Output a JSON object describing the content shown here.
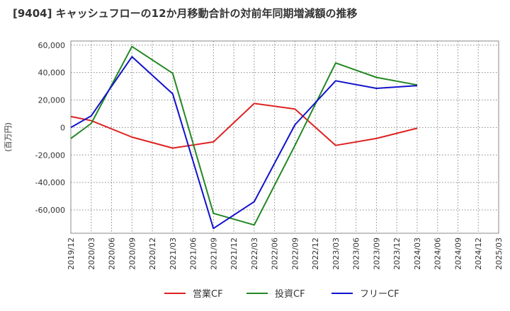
{
  "chart_data": {
    "type": "line",
    "title": "[9404]  キャッシュフローの12か月移動合計の対前年同期増減額の推移",
    "ylabel": "(百万円)",
    "xlabel": "",
    "ylim": [
      -77000,
      63000
    ],
    "yticks": [
      60000,
      40000,
      20000,
      0,
      -20000,
      -40000,
      -60000
    ],
    "ytick_labels": [
      "60,000",
      "40,000",
      "20,000",
      "0",
      "-20,000",
      "-40,000",
      "-60,000"
    ],
    "xticks": [
      "2019/12",
      "2020/03",
      "2020/06",
      "2020/09",
      "2020/12",
      "2021/03",
      "2021/06",
      "2021/09",
      "2021/12",
      "2022/03",
      "2022/06",
      "2022/09",
      "2022/12",
      "2023/03",
      "2023/06",
      "2023/09",
      "2023/12",
      "2024/03",
      "2024/06",
      "2024/09",
      "2024/12",
      "2025/03"
    ],
    "grid": true,
    "legend_position": "bottom",
    "series": [
      {
        "name": "営業CF",
        "color": "#dd2222",
        "x": [
          "2019/12",
          "2020/03",
          "2020/09",
          "2021/03",
          "2021/09",
          "2022/03",
          "2022/09",
          "2023/03",
          "2023/09",
          "2024/03"
        ],
        "values": [
          8000,
          5000,
          -7000,
          -15000,
          -10500,
          17500,
          13500,
          -13000,
          -8000,
          -500
        ]
      },
      {
        "name": "投資CF",
        "color": "#228822",
        "x": [
          "2019/12",
          "2020/03",
          "2020/09",
          "2021/03",
          "2021/09",
          "2022/03",
          "2022/09",
          "2023/03",
          "2023/09",
          "2024/03"
        ],
        "values": [
          -8000,
          3000,
          59000,
          39500,
          -62500,
          -71000,
          -13000,
          47000,
          36500,
          31000
        ]
      },
      {
        "name": "フリーCF",
        "color": "#1111cc",
        "x": [
          "2019/12",
          "2020/03",
          "2020/09",
          "2021/03",
          "2021/09",
          "2022/03",
          "2022/09",
          "2023/03",
          "2023/09",
          "2024/03"
        ],
        "values": [
          0,
          8500,
          51500,
          24500,
          -73500,
          -54000,
          2000,
          34000,
          28500,
          30500
        ]
      }
    ]
  }
}
